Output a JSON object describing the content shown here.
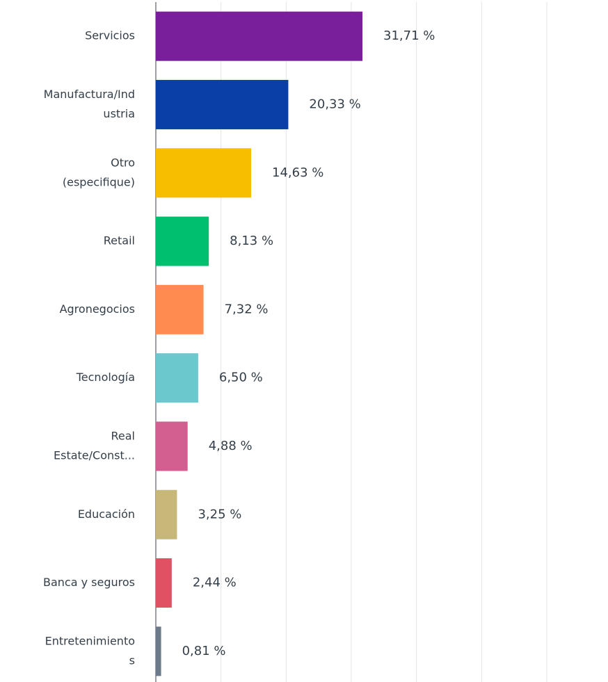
{
  "chart_data": {
    "type": "barh",
    "categories": [
      [
        "Servicios"
      ],
      [
        "Manufactura/Ind",
        "ustria"
      ],
      [
        "Otro",
        "(especifique)"
      ],
      [
        "Retail"
      ],
      [
        "Agronegocios"
      ],
      [
        "Tecnología"
      ],
      [
        "Real",
        "Estate/Const..."
      ],
      [
        "Educación"
      ],
      [
        "Banca y seguros"
      ],
      [
        "Entretenimiento",
        "s"
      ]
    ],
    "values": [
      31.71,
      20.33,
      14.63,
      8.13,
      7.32,
      6.5,
      4.88,
      3.25,
      2.44,
      0.81
    ],
    "value_labels": [
      "31,71 %",
      "20,33 %",
      "14,63 %",
      "8,13 %",
      "7,32 %",
      "6,50 %",
      "4,88 %",
      "3,25 %",
      "2,44 %",
      "0,81 %"
    ],
    "colors": [
      "#7a1f9c",
      "#0a3fa8",
      "#f7be00",
      "#00bf6f",
      "#ff8b50",
      "#6bc8cd",
      "#d25f90",
      "#c7b879",
      "#e05263",
      "#6c7a89"
    ],
    "xlim": [
      0,
      60
    ],
    "xticks": [
      0,
      10,
      20,
      30,
      40,
      50,
      60
    ],
    "grid": true
  }
}
